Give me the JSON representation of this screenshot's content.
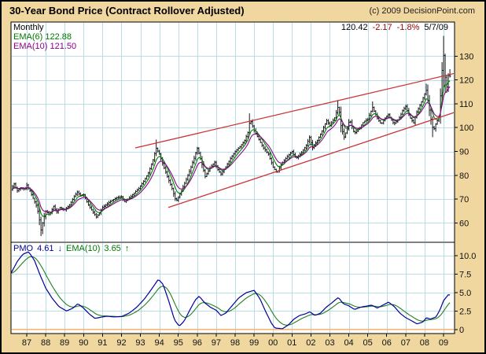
{
  "title": "30-Year Bond Price (Contract Rollover Adjusted)",
  "copyright": "(c) 2009 DecisionPoint.com",
  "quote": {
    "last": "120.42",
    "change": "-2.17",
    "change_pct": "-1.8%",
    "date": "5/7/09"
  },
  "price_legend": {
    "timeframe": "Monthly",
    "ema6": "EMA(6) 122.88",
    "ema10": "EMA(10) 121.50"
  },
  "pmo_legend": {
    "label": "PMO",
    "value": "4.61",
    "arrow": "↓",
    "ema_label": "EMA(10)",
    "ema_value": "3.65",
    "ema_arrow": "↑"
  },
  "colors": {
    "background": "#F0D7A0",
    "panel": "#FFFFFF",
    "grid": "#B8DEEA",
    "frame": "#000000",
    "bars": "#000000",
    "ema6": "#008000",
    "ema10": "#8B008B",
    "pmo": "#000099",
    "pmo_ema": "#208020",
    "trendline": "#CC3333",
    "zero_line": "#FF9933",
    "negative_text": "#990000"
  },
  "chart_data": [
    {
      "type": "ohlc-bar",
      "name": "price",
      "title": "30-Year Bond Price (Contract Rollover Adjusted)",
      "timeframe": "Monthly",
      "last_close": 120.42,
      "change": -2.17,
      "change_pct": "-1.8%",
      "date": "5/7/09",
      "ema6_value": 122.88,
      "ema10_value": 121.5,
      "x_range": [
        1986.17,
        2009.58
      ],
      "y_range": [
        51.9,
        144.3
      ],
      "x_ticks": [
        [
          1987,
          "87"
        ],
        [
          1988,
          "88"
        ],
        [
          1989,
          "89"
        ],
        [
          1990,
          "90"
        ],
        [
          1991,
          "91"
        ],
        [
          1992,
          "92"
        ],
        [
          1993,
          "93"
        ],
        [
          1994,
          "94"
        ],
        [
          1995,
          "95"
        ],
        [
          1996,
          "96"
        ],
        [
          1997,
          "97"
        ],
        [
          1998,
          "98"
        ],
        [
          1999,
          "99"
        ],
        [
          2000,
          "00"
        ],
        [
          2001,
          "01"
        ],
        [
          2002,
          "02"
        ],
        [
          2003,
          "03"
        ],
        [
          2004,
          "04"
        ],
        [
          2005,
          "05"
        ],
        [
          2006,
          "06"
        ],
        [
          2007,
          "07"
        ],
        [
          2008,
          "08"
        ],
        [
          2009,
          "09"
        ]
      ],
      "y_ticks": [
        [
          130,
          "130"
        ],
        [
          120,
          "120"
        ],
        [
          110,
          "110"
        ],
        [
          100,
          "100"
        ],
        [
          90,
          "90"
        ],
        [
          80,
          "80"
        ],
        [
          70,
          "70"
        ],
        [
          60,
          "60"
        ]
      ],
      "ema_periods": [
        6,
        10
      ],
      "close_keyframes": [
        [
          1986.17,
          74.0
        ],
        [
          1986.33,
          76.5
        ],
        [
          1986.5,
          73.5
        ],
        [
          1986.7,
          75.0
        ],
        [
          1986.9,
          74.0
        ],
        [
          1987.0,
          76.0
        ],
        [
          1987.17,
          73.5
        ],
        [
          1987.33,
          70.5
        ],
        [
          1987.5,
          67.5
        ],
        [
          1987.62,
          64.0
        ],
        [
          1987.75,
          57.0
        ],
        [
          1987.88,
          61.5
        ],
        [
          1988.0,
          65.0
        ],
        [
          1988.2,
          63.5
        ],
        [
          1988.42,
          67.0
        ],
        [
          1988.58,
          64.5
        ],
        [
          1988.75,
          66.5
        ],
        [
          1989.0,
          65.5
        ],
        [
          1989.25,
          67.5
        ],
        [
          1989.5,
          71.0
        ],
        [
          1989.67,
          73.0
        ],
        [
          1989.83,
          71.5
        ],
        [
          1990.0,
          72.0
        ],
        [
          1990.25,
          67.5
        ],
        [
          1990.5,
          64.5
        ],
        [
          1990.67,
          62.5
        ],
        [
          1990.83,
          64.0
        ],
        [
          1991.0,
          66.5
        ],
        [
          1991.25,
          68.0
        ],
        [
          1991.5,
          69.5
        ],
        [
          1991.75,
          70.5
        ],
        [
          1992.0,
          71.0
        ],
        [
          1992.17,
          69.0
        ],
        [
          1992.42,
          70.5
        ],
        [
          1992.67,
          72.5
        ],
        [
          1992.92,
          74.5
        ],
        [
          1993.17,
          77.5
        ],
        [
          1993.42,
          81.0
        ],
        [
          1993.67,
          86.5
        ],
        [
          1993.83,
          91.5
        ],
        [
          1994.0,
          89.0
        ],
        [
          1994.17,
          85.0
        ],
        [
          1994.42,
          79.5
        ],
        [
          1994.67,
          74.5
        ],
        [
          1994.88,
          69.0
        ],
        [
          1995.08,
          72.0
        ],
        [
          1995.33,
          76.5
        ],
        [
          1995.58,
          81.5
        ],
        [
          1995.83,
          87.0
        ],
        [
          1996.0,
          91.5
        ],
        [
          1996.17,
          87.0
        ],
        [
          1996.42,
          79.5
        ],
        [
          1996.67,
          83.0
        ],
        [
          1996.92,
          85.5
        ],
        [
          1997.08,
          82.5
        ],
        [
          1997.25,
          80.5
        ],
        [
          1997.5,
          83.5
        ],
        [
          1997.75,
          87.0
        ],
        [
          1998.0,
          90.0
        ],
        [
          1998.25,
          92.0
        ],
        [
          1998.5,
          94.5
        ],
        [
          1998.67,
          98.0
        ],
        [
          1998.79,
          103.5
        ],
        [
          1999.0,
          99.0
        ],
        [
          1999.25,
          95.0
        ],
        [
          1999.5,
          91.5
        ],
        [
          1999.75,
          89.0
        ],
        [
          2000.0,
          83.5
        ],
        [
          2000.21,
          81.0
        ],
        [
          2000.42,
          84.5
        ],
        [
          2000.71,
          87.5
        ],
        [
          2001.0,
          90.0
        ],
        [
          2001.21,
          87.0
        ],
        [
          2001.5,
          89.5
        ],
        [
          2001.75,
          92.5
        ],
        [
          2001.92,
          96.0
        ],
        [
          2002.08,
          91.5
        ],
        [
          2002.33,
          94.5
        ],
        [
          2002.58,
          98.5
        ],
        [
          2002.83,
          103.0
        ],
        [
          2003.0,
          101.0
        ],
        [
          2003.25,
          104.0
        ],
        [
          2003.46,
          109.5
        ],
        [
          2003.58,
          101.0
        ],
        [
          2003.75,
          96.0
        ],
        [
          2003.92,
          99.5
        ],
        [
          2004.04,
          103.5
        ],
        [
          2004.29,
          97.5
        ],
        [
          2004.54,
          99.5
        ],
        [
          2004.79,
          102.5
        ],
        [
          2005.0,
          103.5
        ],
        [
          2005.25,
          108.5
        ],
        [
          2005.5,
          104.0
        ],
        [
          2005.71,
          101.5
        ],
        [
          2005.92,
          104.0
        ],
        [
          2006.08,
          105.5
        ],
        [
          2006.38,
          101.5
        ],
        [
          2006.63,
          103.5
        ],
        [
          2006.83,
          107.0
        ],
        [
          2007.0,
          109.0
        ],
        [
          2007.21,
          104.5
        ],
        [
          2007.42,
          102.0
        ],
        [
          2007.58,
          106.5
        ],
        [
          2007.79,
          110.0
        ],
        [
          2008.0,
          114.0
        ],
        [
          2008.08,
          116.0
        ],
        [
          2008.29,
          105.5
        ],
        [
          2008.46,
          98.5
        ],
        [
          2008.63,
          102.5
        ],
        [
          2008.75,
          104.0
        ],
        [
          2008.88,
          118.0
        ],
        [
          2008.98,
          133.0
        ],
        [
          2009.08,
          121.5
        ],
        [
          2009.17,
          117.0
        ],
        [
          2009.29,
          124.0
        ],
        [
          2009.36,
          120.42
        ]
      ],
      "spikes": [
        {
          "t": 1987.75,
          "l": 54.5
        },
        {
          "t": 1993.83,
          "h": 95.0
        },
        {
          "t": 1998.79,
          "h": 106.0
        },
        {
          "t": 2003.46,
          "h": 111.5
        },
        {
          "t": 2005.25,
          "h": 111.0
        },
        {
          "t": 2008.08,
          "h": 118.5
        },
        {
          "t": 2008.46,
          "l": 96.0
        },
        {
          "t": 2008.98,
          "h": 138.5,
          "l": 116.5
        },
        {
          "t": 2009.08,
          "h": 131.0,
          "l": 114.5
        },
        {
          "t": 2009.36,
          "h": 124.5
        }
      ],
      "trendlines": [
        {
          "x1": 1992.73,
          "y1": 91.5,
          "x2": 2009.55,
          "y2": 122.7
        },
        {
          "x1": 1994.47,
          "y1": 66.5,
          "x2": 2009.55,
          "y2": 106.3
        }
      ]
    },
    {
      "type": "line",
      "name": "pmo",
      "label": "PMO",
      "last": 4.61,
      "ema10_last": 3.65,
      "ema_period": 10,
      "y_range": [
        -0.55,
        11.8
      ],
      "zero_line": 0,
      "y_ticks": [
        [
          10,
          "10.0"
        ],
        [
          7.5,
          "7.5"
        ],
        [
          5,
          "5.0"
        ],
        [
          2.5,
          "2.5"
        ],
        [
          0,
          "0"
        ]
      ],
      "pmo_keyframes": [
        [
          1986.17,
          7.6
        ],
        [
          1986.5,
          9.2
        ],
        [
          1986.8,
          10.2
        ],
        [
          1987.1,
          10.5
        ],
        [
          1987.4,
          9.4
        ],
        [
          1987.7,
          7.4
        ],
        [
          1988.0,
          5.6
        ],
        [
          1988.35,
          4.2
        ],
        [
          1988.7,
          3.1
        ],
        [
          1989.1,
          2.5
        ],
        [
          1989.45,
          2.9
        ],
        [
          1989.7,
          3.5
        ],
        [
          1990.0,
          2.9
        ],
        [
          1990.3,
          2.1
        ],
        [
          1990.6,
          1.5
        ],
        [
          1990.9,
          1.65
        ],
        [
          1991.2,
          1.8
        ],
        [
          1991.6,
          1.7
        ],
        [
          1992.0,
          1.75
        ],
        [
          1992.4,
          2.2
        ],
        [
          1992.8,
          3.0
        ],
        [
          1993.2,
          4.1
        ],
        [
          1993.6,
          5.5
        ],
        [
          1993.95,
          6.8
        ],
        [
          1994.2,
          6.1
        ],
        [
          1994.5,
          3.8
        ],
        [
          1994.8,
          1.3
        ],
        [
          1995.05,
          0.45
        ],
        [
          1995.3,
          1.1
        ],
        [
          1995.6,
          2.6
        ],
        [
          1995.9,
          4.0
        ],
        [
          1996.1,
          4.5
        ],
        [
          1996.4,
          3.6
        ],
        [
          1996.7,
          3.0
        ],
        [
          1997.0,
          2.6
        ],
        [
          1997.25,
          1.9
        ],
        [
          1997.5,
          2.2
        ],
        [
          1997.8,
          3.1
        ],
        [
          1998.2,
          4.3
        ],
        [
          1998.6,
          5.0
        ],
        [
          1999.0,
          5.3
        ],
        [
          1999.3,
          4.2
        ],
        [
          1999.6,
          2.5
        ],
        [
          1999.9,
          0.9
        ],
        [
          2000.1,
          0.2
        ],
        [
          2000.5,
          0.1
        ],
        [
          2000.8,
          0.6
        ],
        [
          2001.1,
          1.4
        ],
        [
          2001.4,
          1.9
        ],
        [
          2001.7,
          2.1
        ],
        [
          2001.95,
          2.4
        ],
        [
          2002.2,
          1.9
        ],
        [
          2002.5,
          2.2
        ],
        [
          2002.8,
          3.0
        ],
        [
          2003.1,
          3.6
        ],
        [
          2003.45,
          4.35
        ],
        [
          2003.7,
          3.5
        ],
        [
          2004.0,
          3.2
        ],
        [
          2004.3,
          2.7
        ],
        [
          2004.6,
          3.0
        ],
        [
          2004.9,
          3.15
        ],
        [
          2005.2,
          3.3
        ],
        [
          2005.5,
          2.9
        ],
        [
          2005.8,
          3.3
        ],
        [
          2006.1,
          3.7
        ],
        [
          2006.4,
          3.1
        ],
        [
          2006.7,
          2.2
        ],
        [
          2007.0,
          1.6
        ],
        [
          2007.3,
          1.2
        ],
        [
          2007.6,
          0.75
        ],
        [
          2007.9,
          1.0
        ],
        [
          2008.1,
          1.6
        ],
        [
          2008.3,
          1.4
        ],
        [
          2008.6,
          1.7
        ],
        [
          2008.8,
          2.6
        ],
        [
          2009.0,
          3.9
        ],
        [
          2009.28,
          4.8
        ],
        [
          2009.36,
          4.61
        ]
      ]
    }
  ]
}
